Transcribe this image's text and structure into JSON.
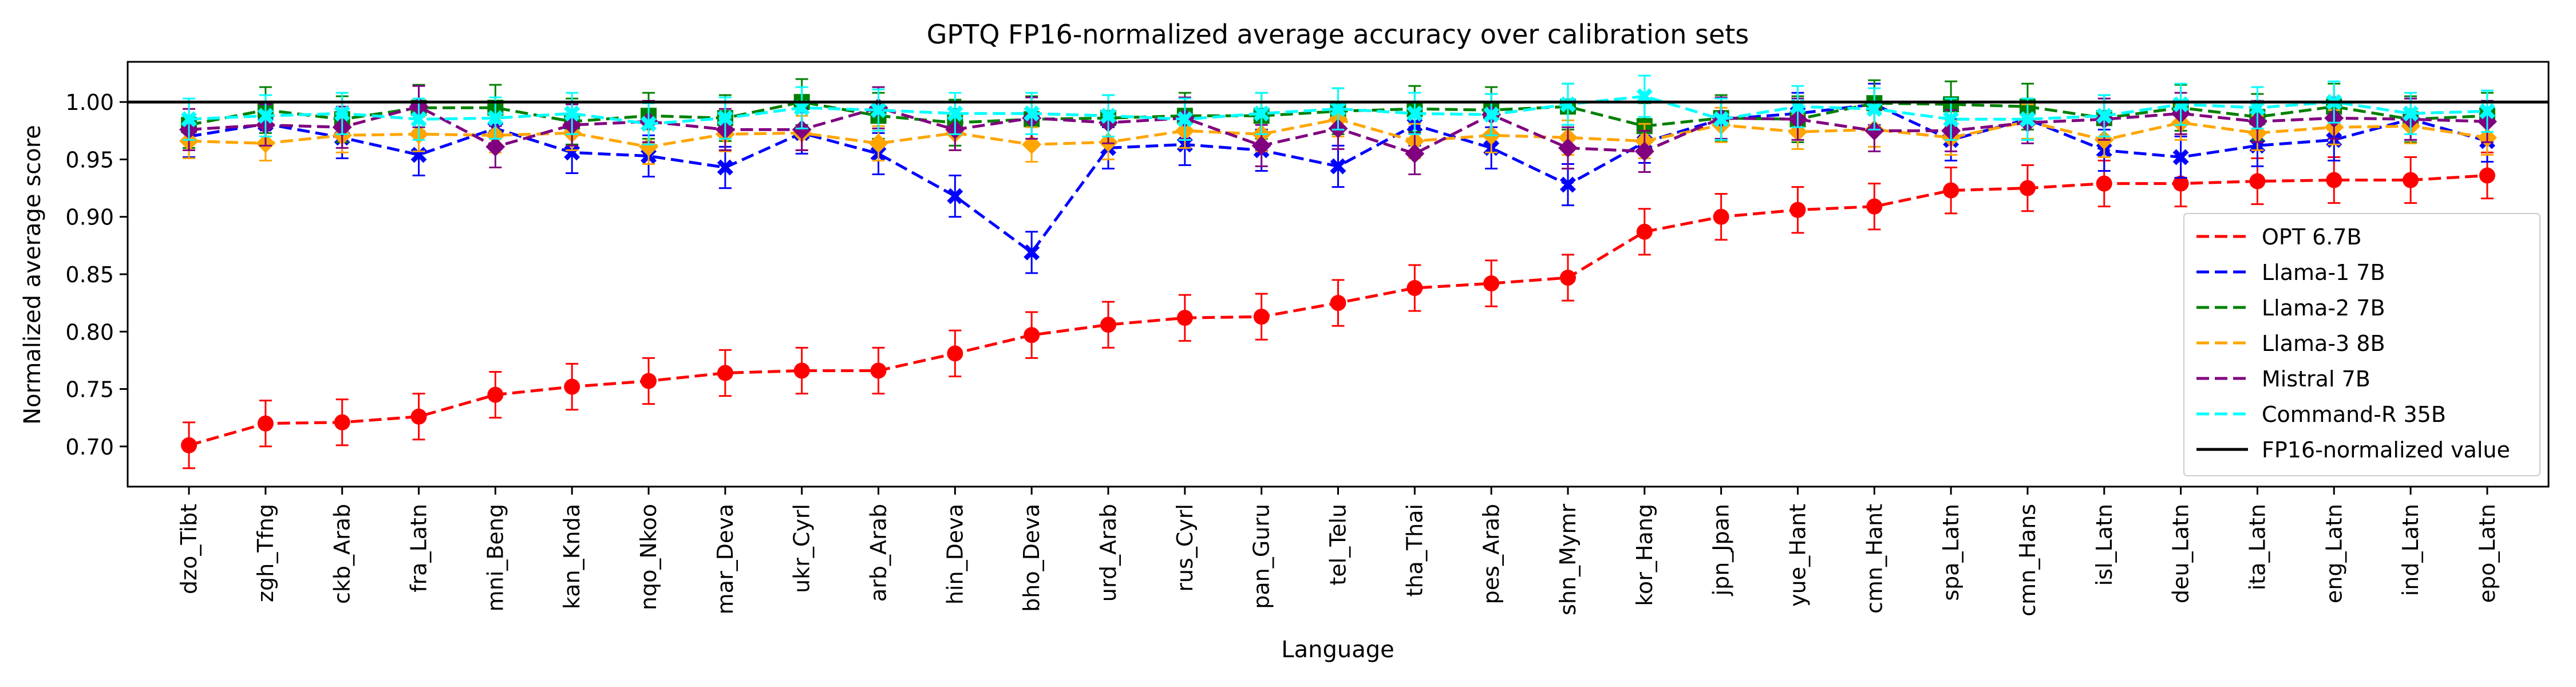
{
  "chart_data": {
    "type": "line",
    "title": "GPTQ FP16-normalized average accuracy over calibration sets",
    "xlabel": "Language",
    "ylabel": "Normalized average score",
    "ylim": [
      0.665,
      1.035
    ],
    "yticks": [
      "0.70",
      "0.75",
      "0.80",
      "0.85",
      "0.90",
      "0.95",
      "1.00"
    ],
    "grid": false,
    "legend_position": "center-right",
    "categories": [
      "dzo_Tibt",
      "zgh_Tfng",
      "ckb_Arab",
      "fra_Latn",
      "mni_Beng",
      "kan_Knda",
      "nqo_Nkoo",
      "mar_Deva",
      "ukr_Cyrl",
      "arb_Arab",
      "hin_Deva",
      "bho_Deva",
      "urd_Arab",
      "rus_Cyrl",
      "pan_Guru",
      "tel_Telu",
      "tha_Thai",
      "pes_Arab",
      "shn_Mymr",
      "kor_Hang",
      "jpn_Jpan",
      "yue_Hant",
      "cmn_Hant",
      "spa_Latn",
      "cmn_Hans",
      "isl_Latn",
      "deu_Latn",
      "ita_Latn",
      "eng_Latn",
      "ind_Latn",
      "epo_Latn"
    ],
    "series": [
      {
        "name": "OPT 6.7B",
        "color": "#ff0000",
        "marker": "circle",
        "values": [
          0.701,
          0.72,
          0.721,
          0.726,
          0.745,
          0.752,
          0.757,
          0.764,
          0.766,
          0.766,
          0.781,
          0.797,
          0.806,
          0.812,
          0.813,
          0.825,
          0.838,
          0.842,
          0.847,
          0.887,
          0.9,
          0.906,
          0.909,
          0.923,
          0.925,
          0.929,
          0.929,
          0.931,
          0.932,
          0.932,
          0.936
        ],
        "errors": [
          0.02,
          0.02,
          0.02,
          0.02,
          0.02,
          0.02,
          0.02,
          0.02,
          0.02,
          0.02,
          0.02,
          0.02,
          0.02,
          0.02,
          0.02,
          0.02,
          0.02,
          0.02,
          0.02,
          0.02,
          0.02,
          0.02,
          0.02,
          0.02,
          0.02,
          0.02,
          0.02,
          0.02,
          0.02,
          0.02,
          0.02
        ]
      },
      {
        "name": "Llama-1 7B",
        "color": "#0000ff",
        "marker": "x",
        "values": [
          0.97,
          0.981,
          0.969,
          0.954,
          0.977,
          0.956,
          0.953,
          0.943,
          0.973,
          0.955,
          0.918,
          0.869,
          0.96,
          0.963,
          0.958,
          0.944,
          0.98,
          0.96,
          0.928,
          0.965,
          0.985,
          0.99,
          0.998,
          0.967,
          0.985,
          0.958,
          0.952,
          0.962,
          0.967,
          0.985,
          0.966
        ],
        "errors": [
          0.018,
          0.018,
          0.018,
          0.018,
          0.018,
          0.018,
          0.018,
          0.018,
          0.018,
          0.018,
          0.018,
          0.018,
          0.018,
          0.018,
          0.018,
          0.018,
          0.018,
          0.018,
          0.018,
          0.018,
          0.018,
          0.018,
          0.018,
          0.018,
          0.018,
          0.018,
          0.018,
          0.018,
          0.018,
          0.018,
          0.018
        ]
      },
      {
        "name": "Llama-2 7B",
        "color": "#008000",
        "marker": "square",
        "values": [
          0.98,
          0.993,
          0.985,
          0.995,
          0.995,
          0.983,
          0.988,
          0.986,
          1.0,
          0.988,
          0.982,
          0.985,
          0.986,
          0.988,
          0.988,
          0.992,
          0.994,
          0.993,
          0.996,
          0.979,
          0.986,
          0.985,
          0.999,
          0.998,
          0.996,
          0.986,
          0.995,
          0.987,
          0.996,
          0.985,
          0.988
        ],
        "errors": [
          0.02,
          0.02,
          0.02,
          0.02,
          0.02,
          0.02,
          0.02,
          0.02,
          0.02,
          0.02,
          0.02,
          0.02,
          0.02,
          0.02,
          0.02,
          0.02,
          0.02,
          0.02,
          0.02,
          0.02,
          0.02,
          0.02,
          0.02,
          0.02,
          0.02,
          0.02,
          0.02,
          0.02,
          0.02,
          0.02,
          0.02
        ]
      },
      {
        "name": "Llama-3 8B",
        "color": "#ffa500",
        "marker": "diamond",
        "values": [
          0.966,
          0.964,
          0.971,
          0.972,
          0.971,
          0.973,
          0.961,
          0.972,
          0.973,
          0.964,
          0.973,
          0.963,
          0.965,
          0.975,
          0.972,
          0.985,
          0.966,
          0.971,
          0.969,
          0.966,
          0.98,
          0.974,
          0.976,
          0.969,
          0.983,
          0.967,
          0.982,
          0.973,
          0.978,
          0.979,
          0.969
        ],
        "errors": [
          0.015,
          0.015,
          0.015,
          0.015,
          0.015,
          0.015,
          0.015,
          0.015,
          0.015,
          0.015,
          0.015,
          0.015,
          0.015,
          0.015,
          0.015,
          0.015,
          0.015,
          0.015,
          0.015,
          0.015,
          0.015,
          0.015,
          0.015,
          0.015,
          0.015,
          0.015,
          0.015,
          0.015,
          0.015,
          0.015,
          0.015
        ]
      },
      {
        "name": "Mistral 7B",
        "color": "#800080",
        "marker": "diamond",
        "values": [
          0.976,
          0.98,
          0.978,
          0.996,
          0.961,
          0.98,
          0.983,
          0.976,
          0.976,
          0.995,
          0.976,
          0.986,
          0.982,
          0.986,
          0.962,
          0.977,
          0.955,
          0.989,
          0.96,
          0.957,
          0.986,
          0.985,
          0.975,
          0.975,
          0.982,
          0.985,
          0.99,
          0.983,
          0.986,
          0.985,
          0.983
        ],
        "errors": [
          0.018,
          0.018,
          0.018,
          0.018,
          0.018,
          0.018,
          0.018,
          0.018,
          0.018,
          0.018,
          0.018,
          0.018,
          0.018,
          0.018,
          0.018,
          0.018,
          0.018,
          0.018,
          0.018,
          0.018,
          0.018,
          0.018,
          0.018,
          0.018,
          0.018,
          0.018,
          0.018,
          0.018,
          0.018,
          0.018,
          0.018
        ]
      },
      {
        "name": "Command-R 35B",
        "color": "#00ffff",
        "marker": "x",
        "values": [
          0.985,
          0.988,
          0.99,
          0.985,
          0.986,
          0.99,
          0.981,
          0.986,
          0.995,
          0.993,
          0.99,
          0.99,
          0.988,
          0.985,
          0.99,
          0.994,
          0.99,
          0.989,
          0.998,
          1.005,
          0.985,
          0.996,
          0.994,
          0.985,
          0.985,
          0.988,
          0.998,
          0.995,
          1.0,
          0.99,
          0.992
        ],
        "errors": [
          0.018,
          0.018,
          0.018,
          0.018,
          0.018,
          0.018,
          0.018,
          0.018,
          0.018,
          0.018,
          0.018,
          0.018,
          0.018,
          0.018,
          0.018,
          0.018,
          0.018,
          0.018,
          0.018,
          0.018,
          0.018,
          0.018,
          0.018,
          0.018,
          0.018,
          0.018,
          0.018,
          0.018,
          0.018,
          0.018,
          0.018
        ]
      }
    ],
    "reference_line": {
      "name": "FP16-normalized value",
      "value": 1.0,
      "color": "#000000"
    }
  }
}
